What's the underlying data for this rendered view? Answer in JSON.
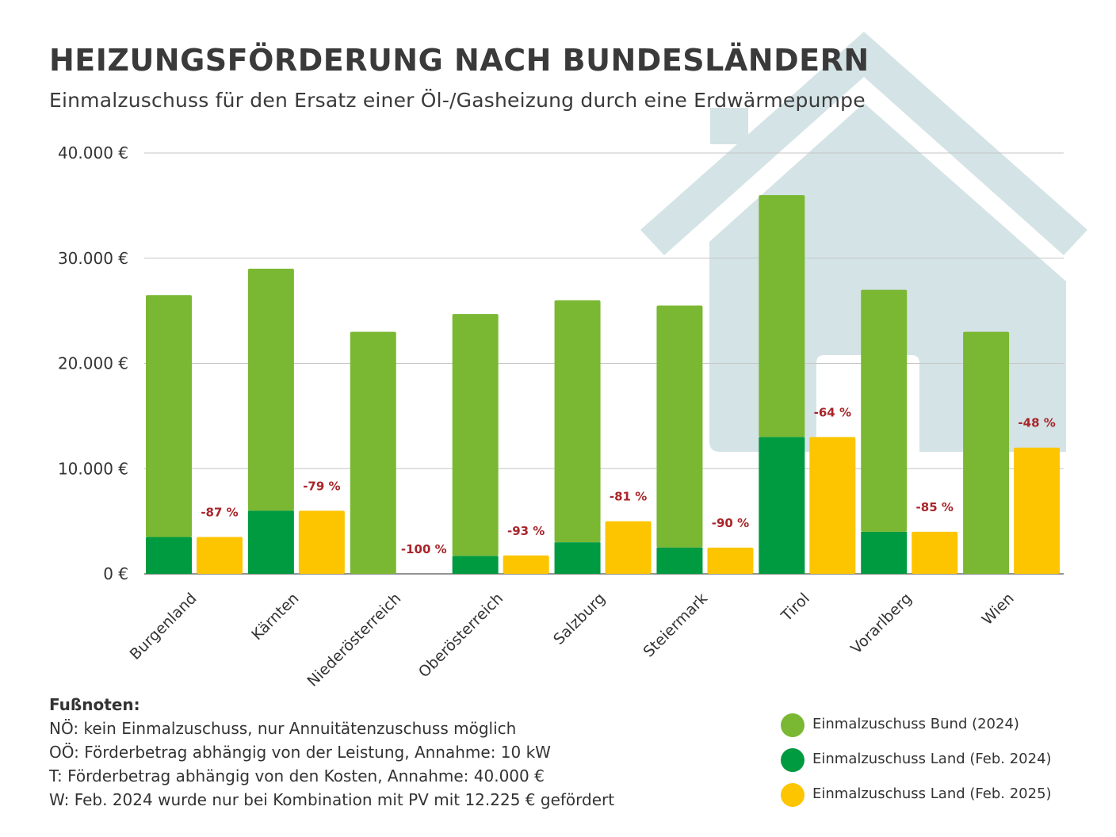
{
  "title": "HEIZUNGSFÖRDERUNG NACH BUNDESLÄNDERN",
  "subtitle": "Einmalzuschuss für den Ersatz einer Öl-/Gasheizung durch eine Erdwärmepumpe",
  "colors": {
    "bund": "#7ab833",
    "land_2024": "#009a40",
    "land_2025": "#fcc500",
    "change_label": "#a8252a",
    "house": "#d4e3e6",
    "grid": "#c6c6c6",
    "text": "#333333"
  },
  "chart_data": {
    "type": "bar",
    "categories": [
      "Burgenland",
      "Kärnten",
      "Niederösterreich",
      "Oberösterreich",
      "Salzburg",
      "Steiermark",
      "Tirol",
      "Vorarlberg",
      "Wien"
    ],
    "series": [
      {
        "name": "Einmalzuschuss Bund (2024)",
        "values": [
          23000,
          23000,
          23000,
          23000,
          23000,
          23000,
          23000,
          23000,
          23000
        ]
      },
      {
        "name": "Einmalzuschuss Land (Feb. 2024)",
        "values": [
          3500,
          6000,
          0,
          1700,
          3000,
          2500,
          13000,
          4000,
          0
        ]
      },
      {
        "name": "Einmalzuschuss Land (Feb. 2025)",
        "values": [
          3500,
          6000,
          0,
          1750,
          5000,
          2500,
          13000,
          4000,
          12000
        ]
      }
    ],
    "change_labels": [
      "-87 %",
      "-79 %",
      "-100 %",
      "-93 %",
      "-81 %",
      "-90 %",
      "-64 %",
      "-85 %",
      "-48 %"
    ],
    "y_ticks": [
      0,
      10000,
      20000,
      30000,
      40000
    ],
    "y_tick_labels": [
      "0 €",
      "10.000 €",
      "20.000 €",
      "30.000 €",
      "40.000 €"
    ],
    "ylim": [
      0,
      40000
    ],
    "grid": true,
    "legend_position": "bottom-right"
  },
  "footnotes": {
    "heading": "Fußnoten:",
    "lines": [
      "NÖ: kein Einmalzuschuss, nur Annuitätenzuschuss möglich",
      "OÖ: Förderbetrag abhängig von der Leistung, Annahme: 10 kW",
      "T: Förderbetrag abhängig von den Kosten, Annahme: 40.000 €",
      "W: Feb. 2024 wurde nur bei Kombination mit PV mit 12.225 € gefördert"
    ]
  },
  "legend": [
    {
      "label": "Einmalzuschuss Bund (2024)",
      "color": "#7ab833"
    },
    {
      "label": "Einmalzuschuss Land (Feb. 2024)",
      "color": "#009a40"
    },
    {
      "label": "Einmalzuschuss Land (Feb. 2025)",
      "color": "#fcc500"
    }
  ]
}
